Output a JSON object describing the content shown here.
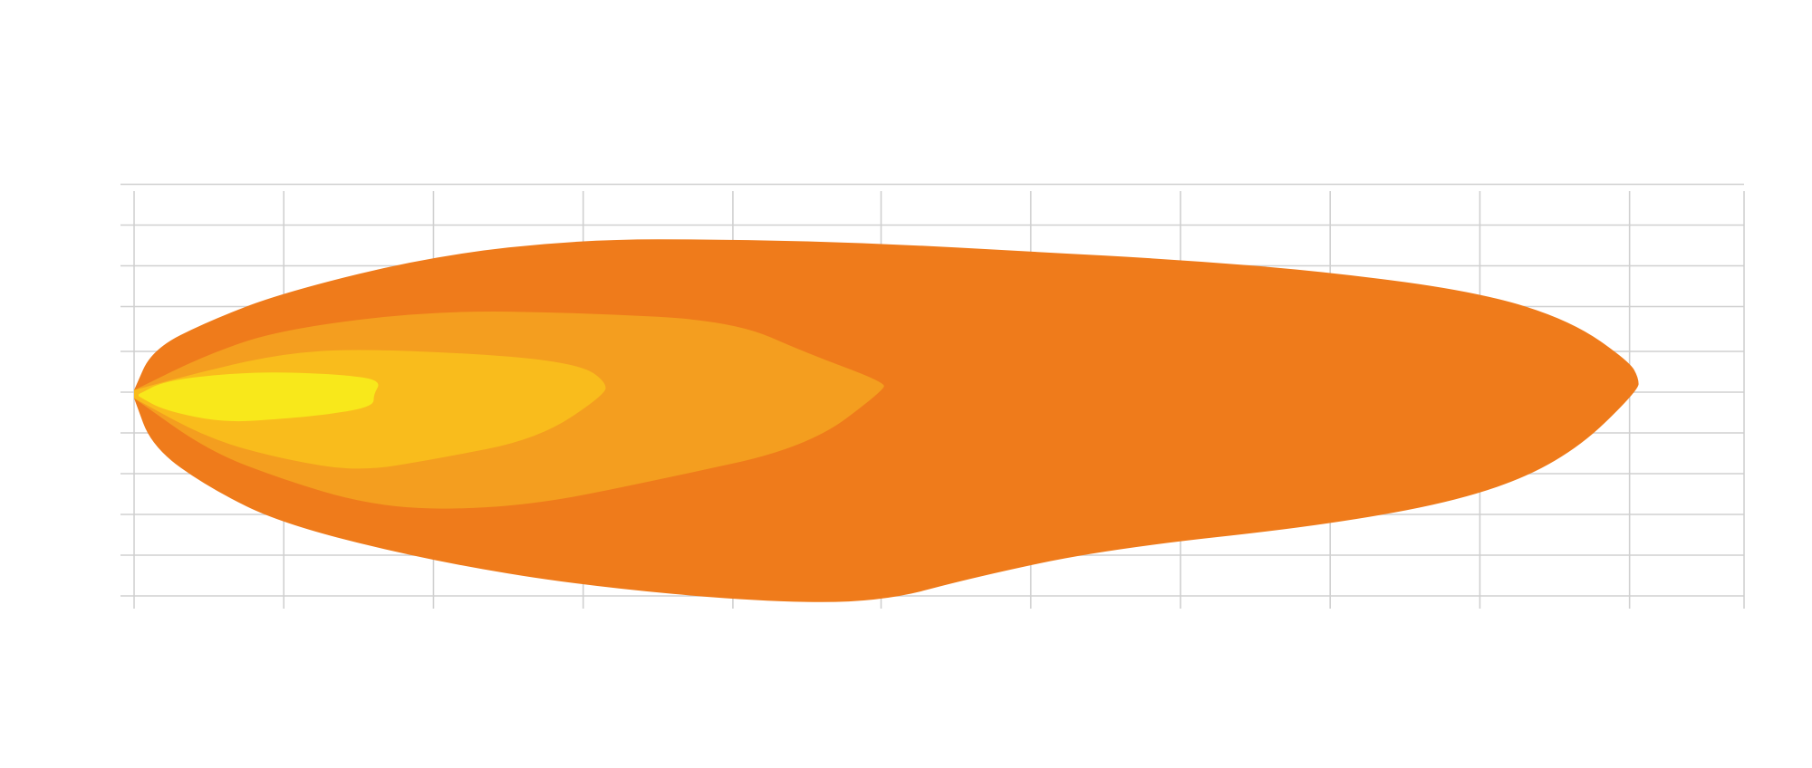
{
  "chart_data": {
    "type": "area",
    "title": "",
    "xlabel": "",
    "ylabel": "",
    "xlim": [
      0,
      1080
    ],
    "ylim": [
      -6,
      6
    ],
    "x_gridlines": [
      0,
      100,
      200,
      300,
      400,
      499,
      599,
      699,
      799,
      899,
      999
    ],
    "y_gridlines": [
      5.65,
      4.65,
      3.65,
      2.65,
      1.55,
      0.55,
      -0.45,
      -1.45,
      -2.45,
      -3.45,
      -4.45
    ],
    "grid": true,
    "legend": "none",
    "series": [
      {
        "color": "#ef7b1b",
        "upper": [
          [
            0,
            0.6
          ],
          [
            12,
            1.6
          ],
          [
            50,
            2.3
          ],
          [
            100,
            3.0
          ],
          [
            200,
            3.9
          ],
          [
            300,
            4.3
          ],
          [
            400,
            4.3
          ],
          [
            499,
            4.2
          ],
          [
            599,
            4.0
          ],
          [
            699,
            3.8
          ],
          [
            799,
            3.5
          ],
          [
            899,
            3.0
          ],
          [
            960,
            2.3
          ],
          [
            999,
            1.3
          ],
          [
            1005,
            0.9
          ]
        ],
        "lower": [
          [
            0,
            0.4
          ],
          [
            12,
            -0.8
          ],
          [
            50,
            -1.8
          ],
          [
            100,
            -2.7
          ],
          [
            200,
            -3.6
          ],
          [
            300,
            -4.2
          ],
          [
            420,
            -4.6
          ],
          [
            499,
            -4.6
          ],
          [
            560,
            -4.0
          ],
          [
            650,
            -3.3
          ],
          [
            800,
            -2.7
          ],
          [
            899,
            -2.0
          ],
          [
            960,
            -1.0
          ],
          [
            1005,
            0.6
          ]
        ]
      },
      {
        "color": "#f49e1f",
        "upper": [
          [
            0,
            0.6
          ],
          [
            50,
            1.5
          ],
          [
            100,
            2.1
          ],
          [
            200,
            2.55
          ],
          [
            300,
            2.5
          ],
          [
            400,
            2.3
          ],
          [
            450,
            1.5
          ],
          [
            501,
            0.8
          ]
        ],
        "lower": [
          [
            0,
            0.4
          ],
          [
            50,
            -0.9
          ],
          [
            100,
            -1.6
          ],
          [
            150,
            -2.15
          ],
          [
            200,
            -2.35
          ],
          [
            270,
            -2.2
          ],
          [
            350,
            -1.6
          ],
          [
            450,
            -0.8
          ],
          [
            501,
            0.6
          ]
        ]
      },
      {
        "color": "#f9bc1c",
        "upper": [
          [
            0,
            0.6
          ],
          [
            50,
            1.1
          ],
          [
            100,
            1.5
          ],
          [
            150,
            1.62
          ],
          [
            250,
            1.45
          ],
          [
            300,
            1.2
          ],
          [
            315,
            0.8
          ]
        ],
        "lower": [
          [
            0,
            0.4
          ],
          [
            50,
            -0.6
          ],
          [
            100,
            -1.1
          ],
          [
            150,
            -1.4
          ],
          [
            200,
            -1.1
          ],
          [
            270,
            -0.6
          ],
          [
            315,
            0.5
          ]
        ]
      },
      {
        "color": "#f8e81b",
        "upper": [
          [
            3,
            0.5
          ],
          [
            20,
            0.82
          ],
          [
            60,
            1.0
          ],
          [
            100,
            1.05
          ],
          [
            150,
            0.95
          ],
          [
            165,
            0.8
          ],
          [
            160,
            0.5
          ]
        ],
        "lower": [
          [
            3,
            0.45
          ],
          [
            20,
            0.1
          ],
          [
            60,
            -0.2
          ],
          [
            100,
            -0.1
          ],
          [
            130,
            0.0
          ],
          [
            160,
            0.2
          ]
        ]
      }
    ]
  }
}
